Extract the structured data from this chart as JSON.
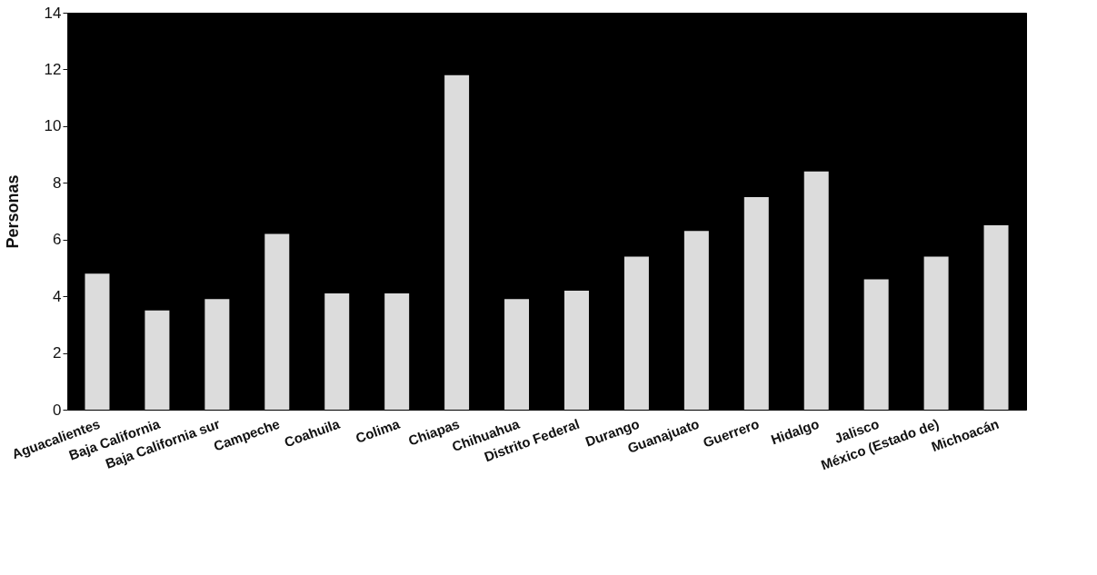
{
  "chart_data": {
    "type": "bar",
    "ylabel": "Personas",
    "categories": [
      "Aguacalientes",
      "Baja California",
      "Baja California sur",
      "Campeche",
      "Coahuila",
      "Colima",
      "Chiapas",
      "Chihuahua",
      "Distrito Federal",
      "Durango",
      "Guanajuato",
      "Guerrero",
      "Hidalgo",
      "Jalisco",
      "México (Estado de)",
      "Michoacán"
    ],
    "values": [
      4.8,
      3.5,
      3.9,
      6.2,
      4.1,
      4.1,
      11.8,
      3.9,
      4.2,
      5.4,
      6.3,
      7.5,
      8.4,
      4.6,
      5.4,
      6.5
    ],
    "color": "#dcdcdc",
    "ylim": [
      0,
      14
    ],
    "yticks": [
      0,
      2,
      4,
      6,
      8,
      10,
      12,
      14
    ],
    "grid": false
  }
}
